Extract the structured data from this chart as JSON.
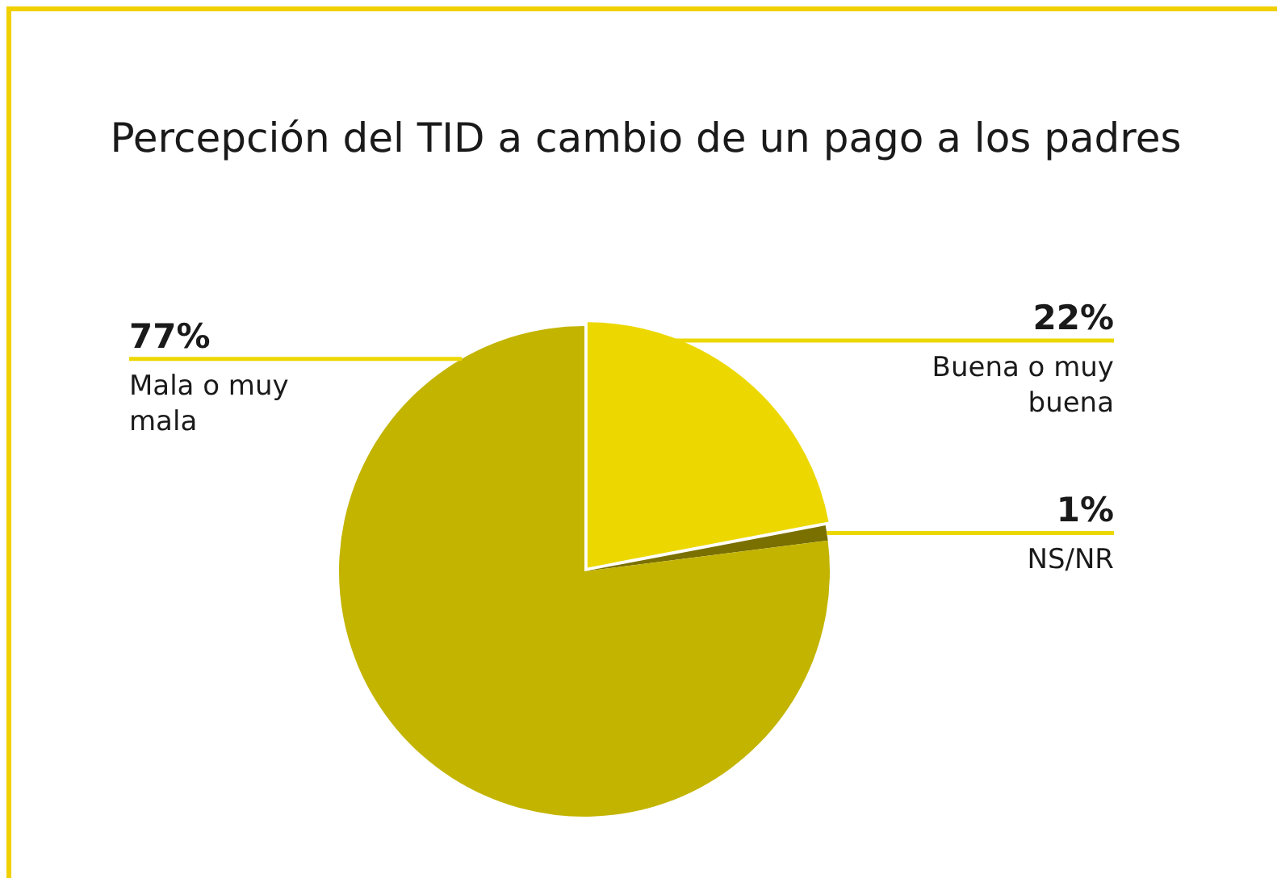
{
  "chart_data": {
    "type": "pie",
    "title": "Percepción del TID a cambio de un pago a los padres",
    "categories": [
      "Buena o muy buena",
      "NS/NR",
      "Mala o muy mala"
    ],
    "values": [
      22,
      1,
      77
    ],
    "colors": [
      "#ecd800",
      "#7a7000",
      "#c3b400"
    ],
    "value_labels": [
      "22%",
      "1%",
      "77%"
    ]
  }
}
